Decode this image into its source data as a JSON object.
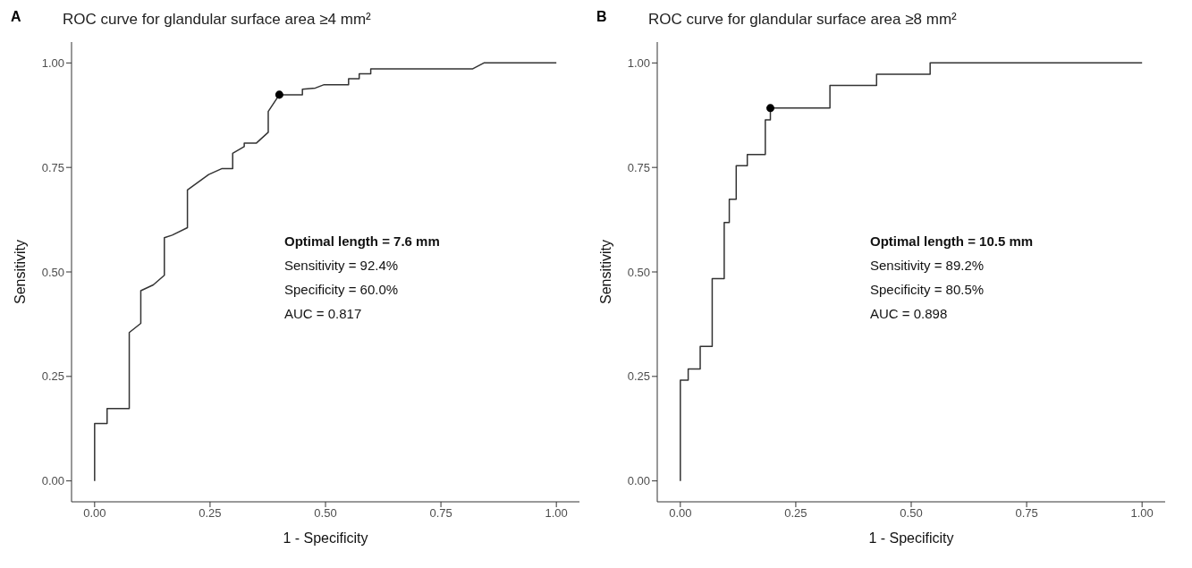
{
  "chart_data": [
    {
      "type": "line",
      "title": "ROC curve for glandular surface area ≥4 mm²",
      "xlabel": "1 - Specificity",
      "ylabel": "Sensitivity",
      "xlim": [
        -0.05,
        1.05
      ],
      "ylim": [
        -0.05,
        1.05
      ],
      "xticks": [
        {
          "value": 0,
          "label": "0.00"
        },
        {
          "value": 0.25,
          "label": "0.25"
        },
        {
          "value": 0.5,
          "label": "0.50"
        },
        {
          "value": 0.75,
          "label": "0.75"
        },
        {
          "value": 1,
          "label": "1.00"
        }
      ],
      "yticks": [
        {
          "value": 0,
          "label": "0.00"
        },
        {
          "value": 0.25,
          "label": "0.25"
        },
        {
          "value": 0.5,
          "label": "0.50"
        },
        {
          "value": 0.75,
          "label": "0.75"
        },
        {
          "value": 1,
          "label": "1.00"
        }
      ],
      "grid": false,
      "line_style": "solid",
      "annotations": [
        "A",
        "Optimal length = 7.6 mm",
        "Sensitivity = 92.4%",
        "Specificity = 60.0%",
        "AUC = 0.817"
      ],
      "series": [
        {
          "color": "#333333",
          "marker": "none",
          "x": [
            0,
            0,
            0.027,
            0.027,
            0.075,
            0.075,
            0.1,
            0.1,
            0.127,
            0.151,
            0.151,
            0.168,
            0.201,
            0.201,
            0.247,
            0.275,
            0.299,
            0.299,
            0.324,
            0.324,
            0.35,
            0.376,
            0.376,
            0.4,
            0.45,
            0.45,
            0.478,
            0.497,
            0.55,
            0.55,
            0.573,
            0.573,
            0.598,
            0.598,
            0.819,
            0.843,
            1
          ],
          "values": [
            0,
            0.137,
            0.137,
            0.173,
            0.173,
            0.355,
            0.377,
            0.455,
            0.469,
            0.492,
            0.582,
            0.588,
            0.606,
            0.696,
            0.733,
            0.747,
            0.747,
            0.784,
            0.8,
            0.808,
            0.808,
            0.834,
            0.884,
            0.924,
            0.924,
            0.937,
            0.94,
            0.948,
            0.948,
            0.962,
            0.962,
            0.974,
            0.974,
            0.986,
            0.986,
            1,
            1
          ]
        },
        {
          "type": "scatter",
          "color": "#000000",
          "marker": "circle",
          "x": [
            0.4
          ],
          "values": [
            0.924
          ]
        }
      ]
    },
    {
      "type": "line",
      "title": "ROC curve for glandular surface area ≥8 mm²",
      "xlabel": "1 - Specificity",
      "ylabel": "Sensitivity",
      "xlim": [
        -0.05,
        1.05
      ],
      "ylim": [
        -0.05,
        1.05
      ],
      "xticks": [
        {
          "value": 0,
          "label": "0.00"
        },
        {
          "value": 0.25,
          "label": "0.25"
        },
        {
          "value": 0.5,
          "label": "0.50"
        },
        {
          "value": 0.75,
          "label": "0.75"
        },
        {
          "value": 1,
          "label": "1.00"
        }
      ],
      "yticks": [
        {
          "value": 0,
          "label": "0.00"
        },
        {
          "value": 0.25,
          "label": "0.25"
        },
        {
          "value": 0.5,
          "label": "0.50"
        },
        {
          "value": 0.75,
          "label": "0.75"
        },
        {
          "value": 1,
          "label": "1.00"
        }
      ],
      "grid": false,
      "line_style": "solid",
      "annotations": [
        "B",
        "Optimal length = 10.5 mm",
        "Sensitivity = 89.2%",
        "Specificity = 80.5%",
        "AUC = 0.898"
      ],
      "series": [
        {
          "color": "#333333",
          "marker": "none",
          "x": [
            0,
            0,
            0.017,
            0.017,
            0.043,
            0.043,
            0.069,
            0.069,
            0.095,
            0.095,
            0.106,
            0.106,
            0.121,
            0.121,
            0.145,
            0.145,
            0.184,
            0.184,
            0.195,
            0.195,
            0.324,
            0.324,
            0.425,
            0.425,
            0.541,
            0.541,
            1
          ],
          "values": [
            0,
            0.241,
            0.241,
            0.268,
            0.268,
            0.322,
            0.322,
            0.484,
            0.484,
            0.618,
            0.618,
            0.674,
            0.674,
            0.754,
            0.754,
            0.781,
            0.781,
            0.864,
            0.864,
            0.892,
            0.892,
            0.946,
            0.946,
            0.973,
            0.973,
            1,
            1
          ]
        },
        {
          "type": "scatter",
          "color": "#000000",
          "marker": "circle",
          "x": [
            0.195
          ],
          "values": [
            0.892
          ]
        }
      ]
    }
  ]
}
